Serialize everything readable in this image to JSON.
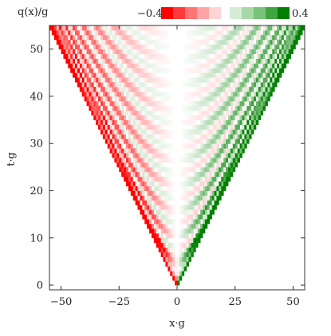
{
  "chart_data": {
    "type": "heatmap",
    "title": "",
    "xlabel": "x·g",
    "ylabel": "t·g",
    "xlim": [
      -55,
      55
    ],
    "ylim": [
      -1,
      55
    ],
    "xticks": [
      {
        "value": -50,
        "label": "−50"
      },
      {
        "value": -25,
        "label": "−25"
      },
      {
        "value": 0,
        "label": "0"
      },
      {
        "value": 25,
        "label": "25"
      },
      {
        "value": 50,
        "label": "50"
      }
    ],
    "yticks": [
      {
        "value": 0,
        "label": "0"
      },
      {
        "value": 10,
        "label": "10"
      },
      {
        "value": 20,
        "label": "20"
      },
      {
        "value": 30,
        "label": "30"
      },
      {
        "value": 40,
        "label": "40"
      },
      {
        "value": 50,
        "label": "50"
      }
    ],
    "light_cone": {
      "origin_x": 0,
      "origin_t": 0,
      "velocity": 1,
      "t_max": 54
    },
    "field": {
      "description_sign": "negative for x<0, positive for x>0",
      "stripe_period_t": 5.3,
      "peak_amplitude": 0.4
    },
    "colorbar": {
      "label": "q(x)/g",
      "min": -0.4,
      "max": 0.4,
      "min_label": "−0.4",
      "max_label": "0.4",
      "negative_colors": [
        "#ff0000",
        "#ff3a3a",
        "#ff7474",
        "#ffa5a5",
        "#ffd4d4"
      ],
      "positive_colors": [
        "#d4ecd4",
        "#a8d8a8",
        "#79c279",
        "#3fa53f",
        "#008000"
      ]
    },
    "grid": false,
    "legend": "none"
  }
}
